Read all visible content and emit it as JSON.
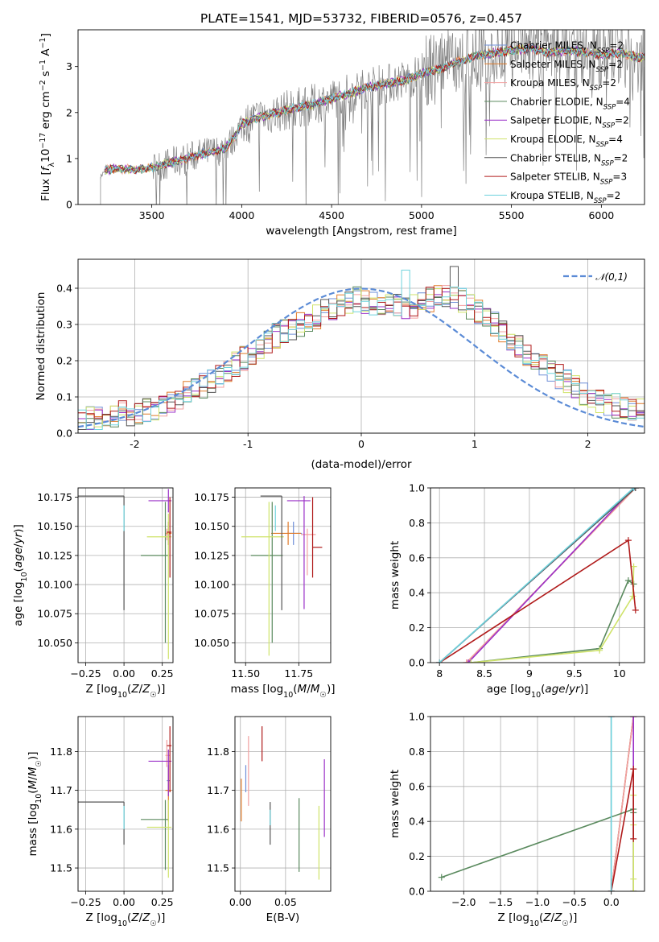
{
  "figure": {
    "title": "PLATE=1541, MJD=53732, FIBERID=0576, z=0.457"
  },
  "colors": {
    "Chabrier MILES": "#6e8fd8",
    "Salpeter MILES": "#e07b2a",
    "Kroupa MILES": "#f2a0a0",
    "Chabrier ELODIE": "#5a8a5e",
    "Salpeter ELODIE": "#9b30c8",
    "Kroupa ELODIE": "#cfe36a",
    "Chabrier STELIB": "#555555",
    "Salpeter STELIB": "#b01a1a",
    "Kroupa STELIB": "#6fd3dd",
    "data": "#808080",
    "normal": "#5b8bd6",
    "grid": "#b0b0b0"
  },
  "chart_data": [
    {
      "id": "spectrum",
      "type": "line",
      "xlabel": "wavelength [Angstrom, rest frame]",
      "ylabel": "Flux [f_λ 10^-17 erg cm^-2 s^-1 A^-1]",
      "xlim": [
        3090,
        6240
      ],
      "ylim": [
        0,
        3.8
      ],
      "xticks": [
        3500,
        4000,
        4500,
        5000,
        5500,
        6000
      ],
      "yticks": [
        0,
        1,
        2,
        3
      ],
      "grid": false,
      "legend_position": "right",
      "model_continuum": {
        "x": [
          3215,
          3240,
          3300,
          3400,
          3500,
          3600,
          3700,
          3800,
          3900,
          3950,
          4000,
          4100,
          4200,
          4300,
          4400,
          4500,
          4600,
          4700,
          4800,
          4900,
          5000,
          5100,
          5200,
          5300,
          5400,
          5500,
          5600,
          5700,
          5800,
          5900,
          6000,
          6100,
          6200
        ],
        "y": [
          0.6,
          0.75,
          0.78,
          0.76,
          0.8,
          0.9,
          1.02,
          1.12,
          1.2,
          1.4,
          1.75,
          1.9,
          2.0,
          2.1,
          2.18,
          2.3,
          2.42,
          2.55,
          2.62,
          2.7,
          2.85,
          2.95,
          3.1,
          3.22,
          3.3,
          3.35,
          3.4,
          3.3,
          3.35,
          3.32,
          3.25,
          3.3,
          3.2
        ]
      },
      "series": [
        {
          "name": "Chabrier MILES",
          "nssp": "2"
        },
        {
          "name": "Salpeter MILES",
          "nssp": "2"
        },
        {
          "name": "Kroupa MILES",
          "nssp": "2"
        },
        {
          "name": "Chabrier ELODIE",
          "nssp": "4"
        },
        {
          "name": "Salpeter ELODIE",
          "nssp": "2"
        },
        {
          "name": "Kroupa ELODIE",
          "nssp": "4"
        },
        {
          "name": "Chabrier STELIB",
          "nssp": "2"
        },
        {
          "name": "Salpeter STELIB",
          "nssp": "3"
        },
        {
          "name": "Kroupa STELIB",
          "nssp": "2"
        }
      ]
    },
    {
      "id": "residuals",
      "type": "histogram",
      "xlabel": "(data-model)/error",
      "ylabel": "Normed distribution",
      "xlim": [
        -2.5,
        2.5
      ],
      "ylim": [
        0,
        0.48
      ],
      "xticks": [
        -2,
        -1,
        0,
        1,
        2
      ],
      "yticks": [
        0.0,
        0.1,
        0.2,
        0.3,
        0.4
      ],
      "grid": true,
      "bin_width": 0.1,
      "legend_entry": "𝒩(0,1)",
      "legend_position": "top-right",
      "sample_histogram": [
        0.035,
        0.04,
        0.04,
        0.045,
        0.05,
        0.055,
        0.055,
        0.06,
        0.065,
        0.07,
        0.08,
        0.09,
        0.1,
        0.11,
        0.12,
        0.13,
        0.145,
        0.16,
        0.175,
        0.19,
        0.205,
        0.22,
        0.24,
        0.255,
        0.27,
        0.28,
        0.29,
        0.3,
        0.31,
        0.32,
        0.335,
        0.345,
        0.355,
        0.36,
        0.37,
        0.365,
        0.36,
        0.35,
        0.355,
        0.35,
        0.345,
        0.35,
        0.36,
        0.37,
        0.375,
        0.38,
        0.375,
        0.365,
        0.35,
        0.335,
        0.32,
        0.3,
        0.28,
        0.26,
        0.24,
        0.22,
        0.2,
        0.185,
        0.17,
        0.155,
        0.14,
        0.125,
        0.11,
        0.1,
        0.09,
        0.08,
        0.075,
        0.07,
        0.065,
        0.06
      ]
    },
    {
      "id": "age_vs_Z",
      "type": "errorbar",
      "xlabel": "Z [log10(Z/Z☉)]",
      "ylabel": "age [log10(age/yr)]",
      "xlim": [
        -0.3,
        0.32
      ],
      "ylim": [
        10.033,
        10.183
      ],
      "xticks": [
        -0.25,
        0.0,
        0.25
      ],
      "xtick_labels": [
        "−0.25",
        "0.00",
        "0.25"
      ],
      "yticks": [
        10.05,
        10.075,
        10.1,
        10.125,
        10.15,
        10.175
      ],
      "grid": true,
      "points": [
        {
          "series": "Chabrier MILES",
          "x": 0.29,
          "y": 10.144,
          "x_err": [
            0.01,
            0.01
          ],
          "y_err": [
            0.01,
            0.01
          ]
        },
        {
          "series": "Salpeter MILES",
          "x": 0.29,
          "y": 10.144,
          "x_err": [
            0.02,
            0.02
          ],
          "y_err": [
            0.01,
            0.01
          ]
        },
        {
          "series": "Kroupa MILES",
          "x": 0.28,
          "y": 10.143,
          "x_err": [
            0.01,
            0.02
          ],
          "y_err": [
            0.005,
            0.005
          ]
        },
        {
          "series": "Chabrier ELODIE",
          "x": 0.27,
          "y": 10.125,
          "x_err": [
            0.16,
            0.02
          ],
          "y_err": [
            0.075,
            0.046
          ]
        },
        {
          "series": "Salpeter ELODIE",
          "x": 0.29,
          "y": 10.172,
          "x_err": [
            0.13,
            0.02
          ],
          "y_err": [
            0.01,
            0.01
          ]
        },
        {
          "series": "Kroupa ELODIE",
          "x": 0.29,
          "y": 10.141,
          "x_err": [
            0.14,
            0.02
          ],
          "y_err": [
            0.105,
            0.02
          ]
        },
        {
          "series": "Chabrier STELIB",
          "x": 0.0,
          "y": 10.176,
          "x_err": [
            0.3,
            0.0
          ],
          "y_err": [
            0.098,
            0.0
          ]
        },
        {
          "series": "Salpeter STELIB",
          "x": 0.3,
          "y": 10.145,
          "x_err": [
            0.02,
            0.01
          ],
          "y_err": [
            0.039,
            0.03
          ]
        },
        {
          "series": "Kroupa STELIB",
          "x": 0.0,
          "y": 10.158,
          "x_err": [
            0.0,
            0.0
          ],
          "y_err": [
            0.012,
            0.01
          ]
        }
      ]
    },
    {
      "id": "age_vs_mass",
      "type": "errorbar",
      "xlabel": "mass [log10(M/M☉)]",
      "xlim": [
        11.45,
        11.9
      ],
      "ylim": [
        10.033,
        10.183
      ],
      "xticks": [
        11.5,
        11.75
      ],
      "xtick_labels": [
        "11.50",
        "11.75"
      ],
      "yticks": [
        10.05,
        10.075,
        10.1,
        10.125,
        10.15,
        10.175
      ],
      "grid": true,
      "points": [
        {
          "series": "Chabrier MILES",
          "x": 11.725,
          "y": 10.144,
          "x_err": [
            0.03,
            0.04
          ],
          "y_err": [
            0.01,
            0.01
          ]
        },
        {
          "series": "Salpeter MILES",
          "x": 11.7,
          "y": 10.144,
          "x_err": [
            0.08,
            0.06
          ],
          "y_err": [
            0.01,
            0.01
          ]
        },
        {
          "series": "Kroupa MILES",
          "x": 11.79,
          "y": 10.143,
          "x_err": [
            0.03,
            0.04
          ],
          "y_err": [
            0.035,
            0.005
          ]
        },
        {
          "series": "Chabrier ELODIE",
          "x": 11.625,
          "y": 10.125,
          "x_err": [
            0.1,
            0.05
          ],
          "y_err": [
            0.075,
            0.046
          ]
        },
        {
          "series": "Salpeter ELODIE",
          "x": 11.775,
          "y": 10.172,
          "x_err": [
            0.08,
            0.03
          ],
          "y_err": [
            0.093,
            0.004
          ]
        },
        {
          "series": "Kroupa ELODIE",
          "x": 11.61,
          "y": 10.141,
          "x_err": [
            0.13,
            0.07
          ],
          "y_err": [
            0.102,
            0.03
          ]
        },
        {
          "series": "Chabrier STELIB",
          "x": 11.67,
          "y": 10.176,
          "x_err": [
            0.1,
            0.0
          ],
          "y_err": [
            0.098,
            0.0
          ]
        },
        {
          "series": "Salpeter STELIB",
          "x": 11.815,
          "y": 10.132,
          "x_err": [
            0.0,
            0.045
          ],
          "y_err": [
            0.026,
            0.043
          ]
        },
        {
          "series": "Kroupa STELIB",
          "x": 11.64,
          "y": 10.158,
          "x_err": [
            0.0,
            0.0
          ],
          "y_err": [
            0.012,
            0.01
          ]
        }
      ]
    },
    {
      "id": "weight_vs_age",
      "type": "line",
      "xlabel": "age [log10(age/yr)]",
      "ylabel": "mass weight",
      "xlim": [
        7.9,
        10.28
      ],
      "ylim": [
        0,
        1.0
      ],
      "xticks": [
        8.0,
        8.5,
        9.0,
        9.5,
        10.0
      ],
      "yticks": [
        0.0,
        0.2,
        0.4,
        0.6,
        0.8,
        1.0
      ],
      "grid": true,
      "series": [
        {
          "series": "Chabrier MILES",
          "x": [
            8.0,
            10.18
          ],
          "y": [
            0.0,
            1.0
          ]
        },
        {
          "series": "Salpeter MILES",
          "x": [
            8.3,
            10.18
          ],
          "y": [
            0.0,
            1.0
          ]
        },
        {
          "series": "Kroupa MILES",
          "x": [
            8.3,
            10.18
          ],
          "y": [
            0.0,
            1.0
          ]
        },
        {
          "series": "Chabrier ELODIE",
          "x": [
            8.35,
            9.78,
            10.1,
            10.16
          ],
          "y": [
            0.0,
            0.08,
            0.47,
            0.45
          ]
        },
        {
          "series": "Salpeter ELODIE",
          "x": [
            8.32,
            10.16
          ],
          "y": [
            0.0,
            1.0
          ]
        },
        {
          "series": "Kroupa ELODIE",
          "x": [
            8.35,
            9.78,
            10.15,
            10.16
          ],
          "y": [
            0.0,
            0.07,
            0.38,
            0.55
          ]
        },
        {
          "series": "Chabrier STELIB",
          "x": [
            8.0,
            10.18
          ],
          "y": [
            0.0,
            1.0
          ]
        },
        {
          "series": "Salpeter STELIB",
          "x": [
            8.0,
            10.1,
            10.18
          ],
          "y": [
            0.0,
            0.7,
            0.3
          ]
        },
        {
          "series": "Kroupa STELIB",
          "x": [
            8.0,
            10.16
          ],
          "y": [
            0.0,
            1.0
          ]
        }
      ]
    },
    {
      "id": "mass_vs_Z",
      "type": "errorbar",
      "xlabel": "Z [log10(Z/Z☉)]",
      "ylabel": "mass [log10(M/M☉)]",
      "xlim": [
        -0.3,
        0.32
      ],
      "ylim": [
        11.44,
        11.89
      ],
      "xticks": [
        -0.25,
        0.0,
        0.25
      ],
      "xtick_labels": [
        "−0.25",
        "0.00",
        "0.25"
      ],
      "yticks": [
        11.5,
        11.6,
        11.7,
        11.8
      ],
      "grid": true,
      "points": [
        {
          "series": "Chabrier MILES",
          "x": 0.29,
          "y": 11.725,
          "x_err": [
            0.01,
            0.01
          ],
          "y_err": [
            0.03,
            0.04
          ]
        },
        {
          "series": "Salpeter MILES",
          "x": 0.29,
          "y": 11.7,
          "x_err": [
            0.02,
            0.02
          ],
          "y_err": [
            0.08,
            0.06
          ]
        },
        {
          "series": "Kroupa MILES",
          "x": 0.28,
          "y": 11.79,
          "x_err": [
            0.01,
            0.02
          ],
          "y_err": [
            0.03,
            0.04
          ]
        },
        {
          "series": "Chabrier ELODIE",
          "x": 0.27,
          "y": 11.625,
          "x_err": [
            0.16,
            0.02
          ],
          "y_err": [
            0.13,
            0.05
          ]
        },
        {
          "series": "Salpeter ELODIE",
          "x": 0.29,
          "y": 11.775,
          "x_err": [
            0.13,
            0.02
          ],
          "y_err": [
            0.09,
            0.03
          ]
        },
        {
          "series": "Kroupa ELODIE",
          "x": 0.29,
          "y": 11.605,
          "x_err": [
            0.14,
            0.02
          ],
          "y_err": [
            0.13,
            0.07
          ]
        },
        {
          "series": "Chabrier STELIB",
          "x": 0.0,
          "y": 11.67,
          "x_err": [
            0.3,
            0.0
          ],
          "y_err": [
            0.11,
            0.0
          ]
        },
        {
          "series": "Salpeter STELIB",
          "x": 0.3,
          "y": 11.815,
          "x_err": [
            0.02,
            0.01
          ],
          "y_err": [
            0.12,
            0.05
          ]
        },
        {
          "series": "Kroupa STELIB",
          "x": 0.0,
          "y": 11.64,
          "x_err": [
            0.0,
            0.0
          ],
          "y_err": [
            0.04,
            0.02
          ]
        }
      ]
    },
    {
      "id": "mass_vs_EBV",
      "type": "errorbar",
      "xlabel": "E(B-V)",
      "xlim": [
        -0.006,
        0.1
      ],
      "ylim": [
        11.44,
        11.89
      ],
      "xticks": [
        0.0,
        0.05
      ],
      "xtick_labels": [
        "0.00",
        "0.05"
      ],
      "yticks": [
        11.5,
        11.6,
        11.7,
        11.8
      ],
      "grid": true,
      "points": [
        {
          "series": "Chabrier MILES",
          "x": 0.006,
          "y": 11.725,
          "x_err": [
            0.0,
            0.0
          ],
          "y_err": [
            0.03,
            0.04
          ]
        },
        {
          "series": "Salpeter MILES",
          "x": 0.001,
          "y": 11.68,
          "x_err": [
            0.0,
            0.0
          ],
          "y_err": [
            0.06,
            0.05
          ]
        },
        {
          "series": "Kroupa MILES",
          "x": 0.009,
          "y": 11.76,
          "x_err": [
            0.0,
            0.0
          ],
          "y_err": [
            0.1,
            0.08
          ]
        },
        {
          "series": "Chabrier ELODIE",
          "x": 0.065,
          "y": 11.585,
          "x_err": [
            0.0,
            0.0
          ],
          "y_err": [
            0.095,
            0.095
          ]
        },
        {
          "series": "Salpeter ELODIE",
          "x": 0.093,
          "y": 11.68,
          "x_err": [
            0.0,
            0.0
          ],
          "y_err": [
            0.1,
            0.1
          ]
        },
        {
          "series": "Kroupa ELODIE",
          "x": 0.087,
          "y": 11.55,
          "x_err": [
            0.0,
            0.0
          ],
          "y_err": [
            0.08,
            0.11
          ]
        },
        {
          "series": "Chabrier STELIB",
          "x": 0.033,
          "y": 11.61,
          "x_err": [
            0.0,
            0.0
          ],
          "y_err": [
            0.05,
            0.06
          ]
        },
        {
          "series": "Salpeter STELIB",
          "x": 0.024,
          "y": 11.815,
          "x_err": [
            0.0,
            0.0
          ],
          "y_err": [
            0.04,
            0.05
          ]
        },
        {
          "series": "Kroupa STELIB",
          "x": 0.033,
          "y": 11.63,
          "x_err": [
            0.0,
            0.0
          ],
          "y_err": [
            0.02,
            0.02
          ]
        }
      ]
    },
    {
      "id": "weight_vs_Z",
      "type": "line",
      "xlabel": "Z [log10(Z/Z☉)]",
      "ylabel": "mass weight",
      "xlim": [
        -2.45,
        0.45
      ],
      "ylim": [
        0,
        1.0
      ],
      "xticks": [
        -2.0,
        -1.5,
        -1.0,
        -0.5,
        0.0
      ],
      "xtick_labels": [
        "−2.0",
        "−1.5",
        "−1.0",
        "−0.5",
        "0.0"
      ],
      "yticks": [
        0.0,
        0.2,
        0.4,
        0.6,
        0.8,
        1.0
      ],
      "grid": true,
      "series": [
        {
          "series": "Chabrier MILES",
          "x": [
            0.0,
            0.3
          ],
          "y": [
            0.0,
            1.0
          ]
        },
        {
          "series": "Salpeter MILES",
          "x": [
            0.0,
            0.3
          ],
          "y": [
            0.0,
            1.0
          ]
        },
        {
          "series": "Kroupa MILES",
          "x": [
            0.0,
            0.3
          ],
          "y": [
            0.0,
            1.0
          ]
        },
        {
          "series": "Chabrier ELODIE",
          "x": [
            -2.3,
            0.3,
            0.3,
            0.3
          ],
          "y": [
            0.08,
            0.47,
            0.45,
            0.0
          ]
        },
        {
          "series": "Salpeter ELODIE",
          "x": [
            0.3,
            0.3
          ],
          "y": [
            0.0,
            1.0
          ]
        },
        {
          "series": "Kroupa ELODIE",
          "x": [
            0.3,
            0.3,
            0.3,
            0.3
          ],
          "y": [
            0.0,
            0.07,
            0.38,
            0.55
          ]
        },
        {
          "series": "Chabrier STELIB",
          "x": [
            0.0,
            0.0
          ],
          "y": [
            0.0,
            1.0
          ]
        },
        {
          "series": "Salpeter STELIB",
          "x": [
            0.0,
            0.3,
            0.3
          ],
          "y": [
            0.0,
            0.7,
            0.3
          ]
        },
        {
          "series": "Kroupa STELIB",
          "x": [
            0.0,
            0.0
          ],
          "y": [
            0.0,
            1.0
          ]
        }
      ]
    }
  ]
}
